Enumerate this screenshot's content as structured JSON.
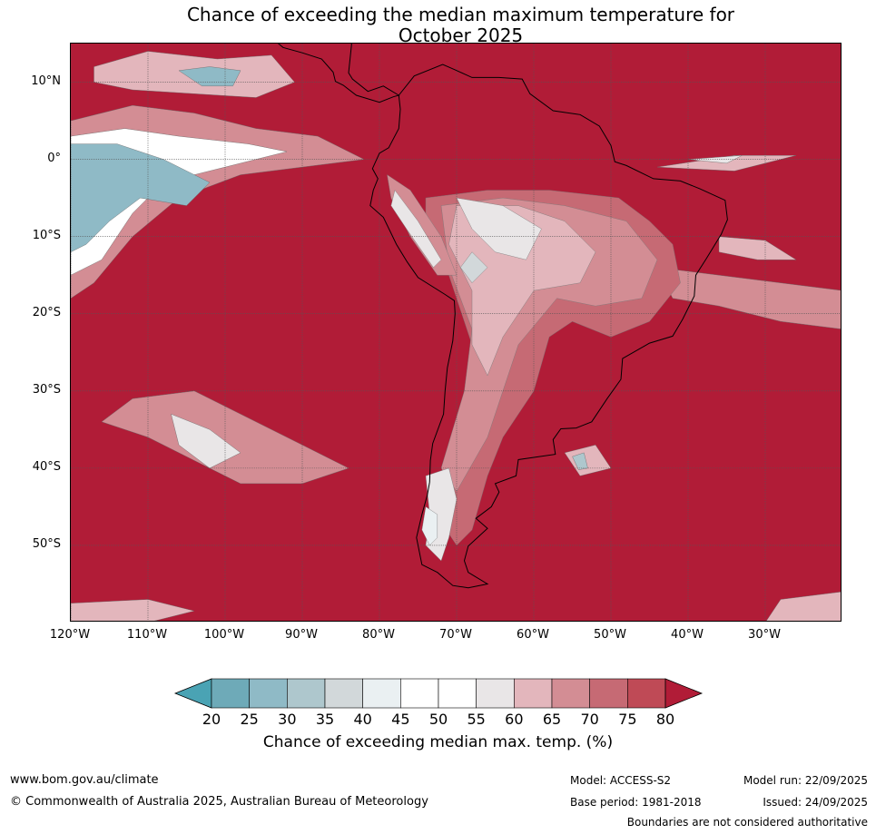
{
  "title": {
    "line1": "Chance of exceeding the median maximum temperature for",
    "line2": "October 2025"
  },
  "map": {
    "projection": "equirectangular",
    "lon_range": [
      -120,
      -20
    ],
    "lat_range": [
      -60,
      15
    ],
    "lat_ticks": [
      {
        "value": 10,
        "label": "10°N"
      },
      {
        "value": 0,
        "label": "0°"
      },
      {
        "value": -10,
        "label": "10°S"
      },
      {
        "value": -20,
        "label": "20°S"
      },
      {
        "value": -30,
        "label": "30°S"
      },
      {
        "value": -40,
        "label": "40°S"
      },
      {
        "value": -50,
        "label": "50°S"
      }
    ],
    "lon_ticks": [
      {
        "value": -120,
        "label": "120°W"
      },
      {
        "value": -110,
        "label": "110°W"
      },
      {
        "value": -100,
        "label": "100°W"
      },
      {
        "value": -90,
        "label": "90°W"
      },
      {
        "value": -80,
        "label": "80°W"
      },
      {
        "value": -70,
        "label": "70°W"
      },
      {
        "value": -60,
        "label": "60°W"
      },
      {
        "value": -50,
        "label": "50°W"
      },
      {
        "value": -40,
        "label": "40°W"
      },
      {
        "value": -30,
        "label": "30°W"
      }
    ],
    "background_category": 80,
    "colors": {
      "gridline": "#555555",
      "coastline": "#000000",
      "borders": "#808080"
    },
    "land_outline": [
      [
        -77.5,
        8.3
      ],
      [
        -75.5,
        10.8
      ],
      [
        -71.8,
        12.3
      ],
      [
        -70.2,
        11.6
      ],
      [
        -68,
        10.6
      ],
      [
        -64.5,
        10.6
      ],
      [
        -61.5,
        10.4
      ],
      [
        -60.5,
        8.5
      ],
      [
        -57.5,
        6.3
      ],
      [
        -54,
        5.8
      ],
      [
        -51.5,
        4.3
      ],
      [
        -50,
        1.8
      ],
      [
        -49.5,
        -0.3
      ],
      [
        -48,
        -0.8
      ],
      [
        -44.5,
        -2.5
      ],
      [
        -41,
        -2.8
      ],
      [
        -38.5,
        -3.8
      ],
      [
        -35.2,
        -5.3
      ],
      [
        -34.9,
        -7.8
      ],
      [
        -35.7,
        -9.7
      ],
      [
        -37.6,
        -12.8
      ],
      [
        -39,
        -15
      ],
      [
        -39.2,
        -17.7
      ],
      [
        -40.7,
        -20.7
      ],
      [
        -42,
        -22.9
      ],
      [
        -45,
        -23.8
      ],
      [
        -48.5,
        -25.8
      ],
      [
        -48.7,
        -28.5
      ],
      [
        -50.5,
        -31
      ],
      [
        -52.5,
        -34
      ],
      [
        -54.5,
        -34.8
      ],
      [
        -56.5,
        -34.9
      ],
      [
        -57.5,
        -36.3
      ],
      [
        -57.2,
        -38.2
      ],
      [
        -62,
        -38.9
      ],
      [
        -62.3,
        -41
      ],
      [
        -65,
        -42
      ],
      [
        -64.5,
        -43.1
      ],
      [
        -65.5,
        -45
      ],
      [
        -67.5,
        -46.5
      ],
      [
        -66,
        -47.8
      ],
      [
        -68.5,
        -50.1
      ],
      [
        -69,
        -52
      ],
      [
        -68.5,
        -53.5
      ],
      [
        -66,
        -55
      ],
      [
        -68.5,
        -55.5
      ],
      [
        -70.5,
        -55.2
      ],
      [
        -72.5,
        -53.5
      ],
      [
        -74.5,
        -52.5
      ],
      [
        -75.2,
        -49
      ],
      [
        -74.5,
        -46
      ],
      [
        -73.8,
        -43.5
      ],
      [
        -73.5,
        -41.8
      ],
      [
        -73.4,
        -39
      ],
      [
        -73.1,
        -36.8
      ],
      [
        -71.7,
        -33
      ],
      [
        -71.5,
        -30
      ],
      [
        -71.2,
        -27
      ],
      [
        -70.5,
        -23.5
      ],
      [
        -70.2,
        -20
      ],
      [
        -70.3,
        -18.3
      ],
      [
        -71.5,
        -17.5
      ],
      [
        -75,
        -15.3
      ],
      [
        -76.4,
        -13.3
      ],
      [
        -77.8,
        -11
      ],
      [
        -79.5,
        -7.5
      ],
      [
        -81.2,
        -6
      ],
      [
        -80.8,
        -4
      ],
      [
        -80.2,
        -2.5
      ],
      [
        -80.9,
        -1.2
      ],
      [
        -80,
        0.8
      ],
      [
        -78.8,
        1.5
      ],
      [
        -77.5,
        4
      ],
      [
        -77.3,
        6.5
      ],
      [
        -77.5,
        8.3
      ]
    ],
    "central_america_outline": [
      [
        -77.5,
        8.3
      ],
      [
        -79.5,
        9.5
      ],
      [
        -81.5,
        8.8
      ],
      [
        -83.5,
        10.4
      ],
      [
        -84,
        11.2
      ],
      [
        -83.6,
        15
      ],
      [
        -86,
        16
      ],
      [
        -88.5,
        15.9
      ],
      [
        -90,
        16.5
      ],
      [
        -92,
        16.9
      ],
      [
        -94.5,
        18
      ],
      [
        -99,
        19
      ],
      [
        -105,
        19.5
      ],
      [
        -107,
        20.3
      ],
      [
        -105,
        23
      ],
      [
        -102,
        20
      ],
      [
        -98,
        16.5
      ],
      [
        -94.5,
        16.2
      ],
      [
        -92.5,
        14.5
      ],
      [
        -90,
        13.8
      ],
      [
        -87.5,
        13
      ],
      [
        -86,
        11.3
      ],
      [
        -85.7,
        10.1
      ],
      [
        -84.7,
        9.6
      ],
      [
        -83,
        8.3
      ],
      [
        -80,
        7.4
      ],
      [
        -78.2,
        8.1
      ],
      [
        -77.5,
        8.3
      ]
    ],
    "land_shading": [
      {
        "category": 70,
        "points": [
          [
            -74,
            -5
          ],
          [
            -66,
            -4
          ],
          [
            -58,
            -4
          ],
          [
            -49,
            -5
          ],
          [
            -45,
            -8
          ],
          [
            -42,
            -11
          ],
          [
            -41,
            -16
          ],
          [
            -45,
            -21
          ],
          [
            -50,
            -23
          ],
          [
            -55,
            -21
          ],
          [
            -58,
            -23
          ],
          [
            -60,
            -30
          ],
          [
            -64,
            -36
          ],
          [
            -66,
            -41
          ],
          [
            -68,
            -48
          ],
          [
            -70,
            -50
          ],
          [
            -72,
            -47
          ],
          [
            -71,
            -40
          ],
          [
            -68,
            -33
          ],
          [
            -67,
            -27
          ],
          [
            -69,
            -21
          ],
          [
            -71,
            -15
          ],
          [
            -74,
            -11
          ]
        ]
      },
      {
        "category": 65,
        "points": [
          [
            -72,
            -6
          ],
          [
            -64,
            -5
          ],
          [
            -56,
            -6
          ],
          [
            -48,
            -8
          ],
          [
            -44,
            -13
          ],
          [
            -46,
            -18
          ],
          [
            -52,
            -19
          ],
          [
            -57,
            -18
          ],
          [
            -62,
            -24
          ],
          [
            -64,
            -30
          ],
          [
            -66,
            -36
          ],
          [
            -70,
            -43
          ],
          [
            -72,
            -40
          ],
          [
            -69,
            -30
          ],
          [
            -68,
            -22
          ],
          [
            -71,
            -14
          ]
        ]
      },
      {
        "category": 60,
        "points": [
          [
            -70,
            -6
          ],
          [
            -62,
            -6
          ],
          [
            -56,
            -8
          ],
          [
            -52,
            -12
          ],
          [
            -54,
            -16
          ],
          [
            -60,
            -17
          ],
          [
            -64,
            -23
          ],
          [
            -66,
            -28
          ],
          [
            -68,
            -24
          ],
          [
            -68,
            -17
          ],
          [
            -71,
            -11
          ]
        ]
      },
      {
        "category": 55,
        "points": [
          [
            -70,
            -5
          ],
          [
            -64,
            -6
          ],
          [
            -59,
            -9
          ],
          [
            -61,
            -13
          ],
          [
            -65,
            -12
          ],
          [
            -68,
            -9
          ]
        ]
      },
      {
        "category": 55,
        "points": [
          [
            -74,
            -41
          ],
          [
            -71,
            -40
          ],
          [
            -70,
            -44
          ],
          [
            -71,
            -49
          ],
          [
            -72,
            -52
          ],
          [
            -74,
            -50
          ],
          [
            -73.5,
            -46
          ]
        ]
      },
      {
        "category": 40,
        "points": [
          [
            -74,
            -45
          ],
          [
            -72.5,
            -46
          ],
          [
            -72.5,
            -49
          ],
          [
            -73.5,
            -50
          ],
          [
            -74.5,
            -48
          ]
        ]
      },
      {
        "category": 35,
        "points": [
          [
            -68,
            -12
          ],
          [
            -66,
            -14
          ],
          [
            -68,
            -16
          ],
          [
            -69.5,
            -14
          ]
        ]
      },
      {
        "category": 65,
        "points": [
          [
            -79,
            -2
          ],
          [
            -76,
            -4
          ],
          [
            -72,
            -10
          ],
          [
            -70,
            -15
          ],
          [
            -72.5,
            -15
          ],
          [
            -76,
            -10
          ],
          [
            -78.5,
            -5
          ]
        ]
      },
      {
        "category": 55,
        "points": [
          [
            -78,
            -4
          ],
          [
            -75,
            -8
          ],
          [
            -72,
            -13
          ],
          [
            -73,
            -14
          ],
          [
            -76.5,
            -9
          ],
          [
            -78.5,
            -6
          ]
        ]
      }
    ],
    "ocean_anomalies": [
      {
        "category": 65,
        "points": [
          [
            -120,
            5
          ],
          [
            -112,
            7
          ],
          [
            -104,
            6
          ],
          [
            -96,
            4
          ],
          [
            -88,
            3
          ],
          [
            -82,
            0
          ],
          [
            -90,
            -1
          ],
          [
            -98,
            -2
          ],
          [
            -106,
            -5
          ],
          [
            -112,
            -10
          ],
          [
            -117,
            -16
          ],
          [
            -120,
            -18
          ]
        ]
      },
      {
        "category": 50,
        "points": [
          [
            -120,
            3
          ],
          [
            -113,
            4
          ],
          [
            -106,
            3
          ],
          [
            -97,
            2
          ],
          [
            -92,
            1
          ],
          [
            -100,
            -1
          ],
          [
            -108,
            -3
          ],
          [
            -112,
            -7
          ],
          [
            -116,
            -13
          ],
          [
            -120,
            -15
          ]
        ]
      },
      {
        "category": 25,
        "points": [
          [
            -120,
            2
          ],
          [
            -114,
            2
          ],
          [
            -108,
            0
          ],
          [
            -102,
            -3
          ],
          [
            -105,
            -6
          ],
          [
            -111,
            -5
          ],
          [
            -115,
            -8
          ],
          [
            -118,
            -11
          ],
          [
            -120,
            -12
          ]
        ]
      },
      {
        "category": 60,
        "points": [
          [
            -117,
            12
          ],
          [
            -110,
            14
          ],
          [
            -101,
            13
          ],
          [
            -94,
            13.5
          ],
          [
            -91,
            10
          ],
          [
            -96,
            8
          ],
          [
            -104,
            8.5
          ],
          [
            -112,
            9
          ],
          [
            -117,
            10
          ]
        ]
      },
      {
        "category": 25,
        "points": [
          [
            -106,
            11.5
          ],
          [
            -102,
            12
          ],
          [
            -98,
            11.5
          ],
          [
            -99,
            9.5
          ],
          [
            -103,
            9.5
          ]
        ]
      },
      {
        "category": 65,
        "points": [
          [
            -112,
            -31
          ],
          [
            -104,
            -30
          ],
          [
            -96,
            -34
          ],
          [
            -90,
            -37
          ],
          [
            -84,
            -40
          ],
          [
            -90,
            -42
          ],
          [
            -98,
            -42
          ],
          [
            -104,
            -39
          ],
          [
            -110,
            -36
          ],
          [
            -116,
            -34
          ]
        ]
      },
      {
        "category": 55,
        "points": [
          [
            -107,
            -33
          ],
          [
            -102,
            -35
          ],
          [
            -98,
            -38
          ],
          [
            -102,
            -40
          ],
          [
            -106,
            -37
          ]
        ]
      },
      {
        "category": 65,
        "points": [
          [
            -44,
            -14
          ],
          [
            -36,
            -15
          ],
          [
            -28,
            -16
          ],
          [
            -20,
            -17
          ],
          [
            -20,
            -22
          ],
          [
            -28,
            -21
          ],
          [
            -36,
            -19
          ],
          [
            -42,
            -18
          ]
        ]
      },
      {
        "category": 60,
        "points": [
          [
            -36,
            -10
          ],
          [
            -30,
            -10.5
          ],
          [
            -26,
            -13
          ],
          [
            -31,
            -13
          ],
          [
            -36,
            -12
          ]
        ]
      },
      {
        "category": 60,
        "points": [
          [
            -56,
            -38
          ],
          [
            -52,
            -37
          ],
          [
            -50,
            -40
          ],
          [
            -54,
            -41
          ]
        ]
      },
      {
        "category": 30,
        "points": [
          [
            -55,
            -38.5
          ],
          [
            -53.5,
            -38
          ],
          [
            -53,
            -40
          ],
          [
            -54.2,
            -40.2
          ]
        ]
      },
      {
        "category": 60,
        "points": [
          [
            -120,
            -57.5
          ],
          [
            -110,
            -57
          ],
          [
            -104,
            -58.5
          ],
          [
            -110,
            -60
          ],
          [
            -120,
            -60
          ]
        ]
      },
      {
        "category": 60,
        "points": [
          [
            -44,
            -1
          ],
          [
            -34,
            0.5
          ],
          [
            -26,
            0.5
          ],
          [
            -34,
            -1.5
          ]
        ]
      },
      {
        "category": 55,
        "points": [
          [
            -40,
            0
          ],
          [
            -33,
            0.5
          ],
          [
            -35,
            -0.5
          ]
        ]
      },
      {
        "category": 60,
        "points": [
          [
            -28,
            -57
          ],
          [
            -20,
            -56
          ],
          [
            -20,
            -60
          ],
          [
            -30,
            -60
          ]
        ]
      }
    ]
  },
  "colorbar": {
    "ticks": [
      "20",
      "25",
      "30",
      "35",
      "40",
      "45",
      "50",
      "55",
      "60",
      "65",
      "70",
      "75",
      "80"
    ],
    "colors": [
      "#4aa3b4",
      "#6eaab8",
      "#8fbac6",
      "#aec7cd",
      "#d2d8da",
      "#eaf0f2",
      "#ffffff",
      "#ffffff",
      "#e9e6e7",
      "#e3b6bc",
      "#d38d94",
      "#c66a74",
      "#bf4a56",
      "#b11c37"
    ],
    "label": "Chance of exceeding median max. temp. (%)"
  },
  "footer": {
    "website": "www.bom.gov.au/climate",
    "copyright": "© Commonwealth of Australia 2025, Australian Bureau of Meteorology",
    "model": "Model: ACCESS-S2",
    "base_period": "Base period: 1981-2018",
    "model_run": "Model run: 22/09/2025",
    "issued": "Issued: 24/09/2025",
    "disclaimer": "Boundaries are not considered authoritative"
  }
}
